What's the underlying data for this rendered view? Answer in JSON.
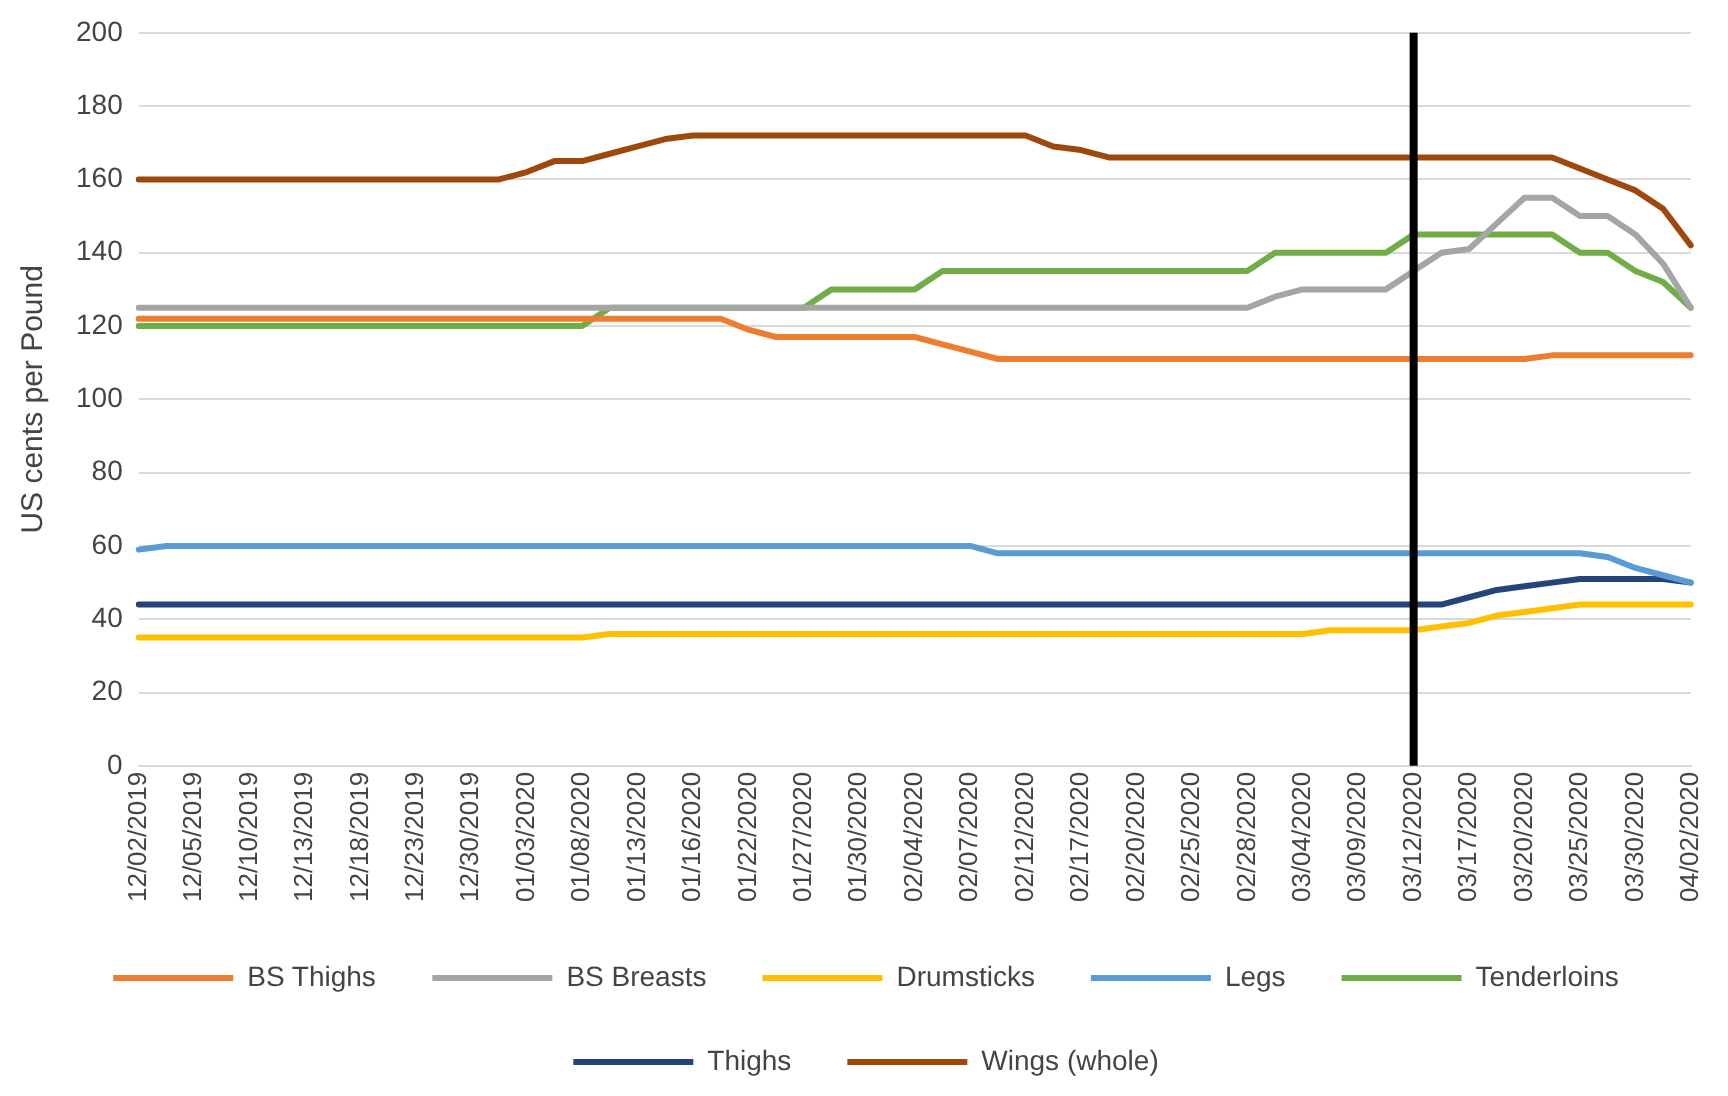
{
  "chart_data": {
    "type": "line",
    "ylabel": "US cents per Pound",
    "categories": [
      "12/02/2019",
      null,
      "12/05/2019",
      null,
      "12/10/2019",
      null,
      "12/13/2019",
      null,
      "12/18/2019",
      null,
      "12/23/2019",
      null,
      "12/30/2019",
      null,
      "01/03/2020",
      null,
      "01/08/2020",
      null,
      "01/13/2020",
      null,
      "01/16/2020",
      null,
      "01/22/2020",
      null,
      "01/27/2020",
      null,
      "01/30/2020",
      null,
      "02/04/2020",
      null,
      "02/07/2020",
      null,
      "02/12/2020",
      null,
      "02/17/2020",
      null,
      "02/20/2020",
      null,
      "02/25/2020",
      null,
      "02/28/2020",
      null,
      "03/04/2020",
      null,
      "03/09/2020",
      null,
      "03/12/2020",
      null,
      "03/17/2020",
      null,
      "03/20/2020",
      null,
      "03/25/2020",
      null,
      "03/30/2020",
      null,
      "04/02/2020"
    ],
    "series": [
      {
        "name": "BS Thighs",
        "color": "#ed7d31",
        "values": [
          122,
          122,
          122,
          122,
          122,
          122,
          122,
          122,
          122,
          122,
          122,
          122,
          122,
          122,
          122,
          122,
          122,
          122,
          122,
          122,
          122,
          122,
          119,
          117,
          117,
          117,
          117,
          117,
          117,
          115,
          113,
          111,
          111,
          111,
          111,
          111,
          111,
          111,
          111,
          111,
          111,
          111,
          111,
          111,
          111,
          111,
          111,
          111,
          111,
          111,
          111,
          112,
          112,
          112,
          112,
          112,
          112
        ]
      },
      {
        "name": "BS Breasts",
        "color": "#a5a5a5",
        "values": [
          125,
          125,
          125,
          125,
          125,
          125,
          125,
          125,
          125,
          125,
          125,
          125,
          125,
          125,
          125,
          125,
          125,
          125,
          125,
          125,
          125,
          125,
          125,
          125,
          125,
          125,
          125,
          125,
          125,
          125,
          125,
          125,
          125,
          125,
          125,
          125,
          125,
          125,
          125,
          125,
          125,
          128,
          130,
          130,
          130,
          130,
          135,
          140,
          141,
          148,
          155,
          155,
          150,
          150,
          145,
          137,
          125
        ]
      },
      {
        "name": "Drumsticks",
        "color": "#ffc000",
        "values": [
          35,
          35,
          35,
          35,
          35,
          35,
          35,
          35,
          35,
          35,
          35,
          35,
          35,
          35,
          35,
          35,
          35,
          36,
          36,
          36,
          36,
          36,
          36,
          36,
          36,
          36,
          36,
          36,
          36,
          36,
          36,
          36,
          36,
          36,
          36,
          36,
          36,
          36,
          36,
          36,
          36,
          36,
          36,
          37,
          37,
          37,
          37,
          38,
          39,
          41,
          42,
          43,
          44,
          44,
          44,
          44,
          44
        ]
      },
      {
        "name": "Legs",
        "color": "#5b9bd5",
        "values": [
          59,
          60,
          60,
          60,
          60,
          60,
          60,
          60,
          60,
          60,
          60,
          60,
          60,
          60,
          60,
          60,
          60,
          60,
          60,
          60,
          60,
          60,
          60,
          60,
          60,
          60,
          60,
          60,
          60,
          60,
          60,
          58,
          58,
          58,
          58,
          58,
          58,
          58,
          58,
          58,
          58,
          58,
          58,
          58,
          58,
          58,
          58,
          58,
          58,
          58,
          58,
          58,
          58,
          57,
          54,
          52,
          50
        ]
      },
      {
        "name": "Tenderloins",
        "color": "#70ad47",
        "values": [
          120,
          120,
          120,
          120,
          120,
          120,
          120,
          120,
          120,
          120,
          120,
          120,
          120,
          120,
          120,
          120,
          120,
          125,
          125,
          125,
          125,
          125,
          125,
          125,
          125,
          130,
          130,
          130,
          130,
          135,
          135,
          135,
          135,
          135,
          135,
          135,
          135,
          135,
          135,
          135,
          135,
          140,
          140,
          140,
          140,
          140,
          145,
          145,
          145,
          145,
          145,
          145,
          140,
          140,
          135,
          132,
          125
        ]
      },
      {
        "name": "Thighs",
        "color": "#264478",
        "values": [
          44,
          44,
          44,
          44,
          44,
          44,
          44,
          44,
          44,
          44,
          44,
          44,
          44,
          44,
          44,
          44,
          44,
          44,
          44,
          44,
          44,
          44,
          44,
          44,
          44,
          44,
          44,
          44,
          44,
          44,
          44,
          44,
          44,
          44,
          44,
          44,
          44,
          44,
          44,
          44,
          44,
          44,
          44,
          44,
          44,
          44,
          44,
          44,
          46,
          48,
          49,
          50,
          51,
          51,
          51,
          51,
          50
        ]
      },
      {
        "name": "Wings (whole)",
        "color": "#9e480e",
        "values": [
          160,
          160,
          160,
          160,
          160,
          160,
          160,
          160,
          160,
          160,
          160,
          160,
          160,
          160,
          162,
          165,
          165,
          167,
          169,
          171,
          172,
          172,
          172,
          172,
          172,
          172,
          172,
          172,
          172,
          172,
          172,
          172,
          172,
          169,
          168,
          166,
          166,
          166,
          166,
          166,
          166,
          166,
          166,
          166,
          166,
          166,
          166,
          166,
          166,
          166,
          166,
          166,
          163,
          160,
          157,
          152,
          142
        ]
      }
    ],
    "ylim": [
      0,
      200
    ],
    "yticks": [
      0,
      20,
      40,
      60,
      80,
      100,
      120,
      140,
      160,
      180,
      200
    ],
    "grid": "y",
    "legend": "bottom",
    "marker": "none",
    "line_style": "solid",
    "ref_lines": [
      {
        "axis": "x",
        "value": "03/12/2020",
        "color": "#000000"
      }
    ]
  }
}
